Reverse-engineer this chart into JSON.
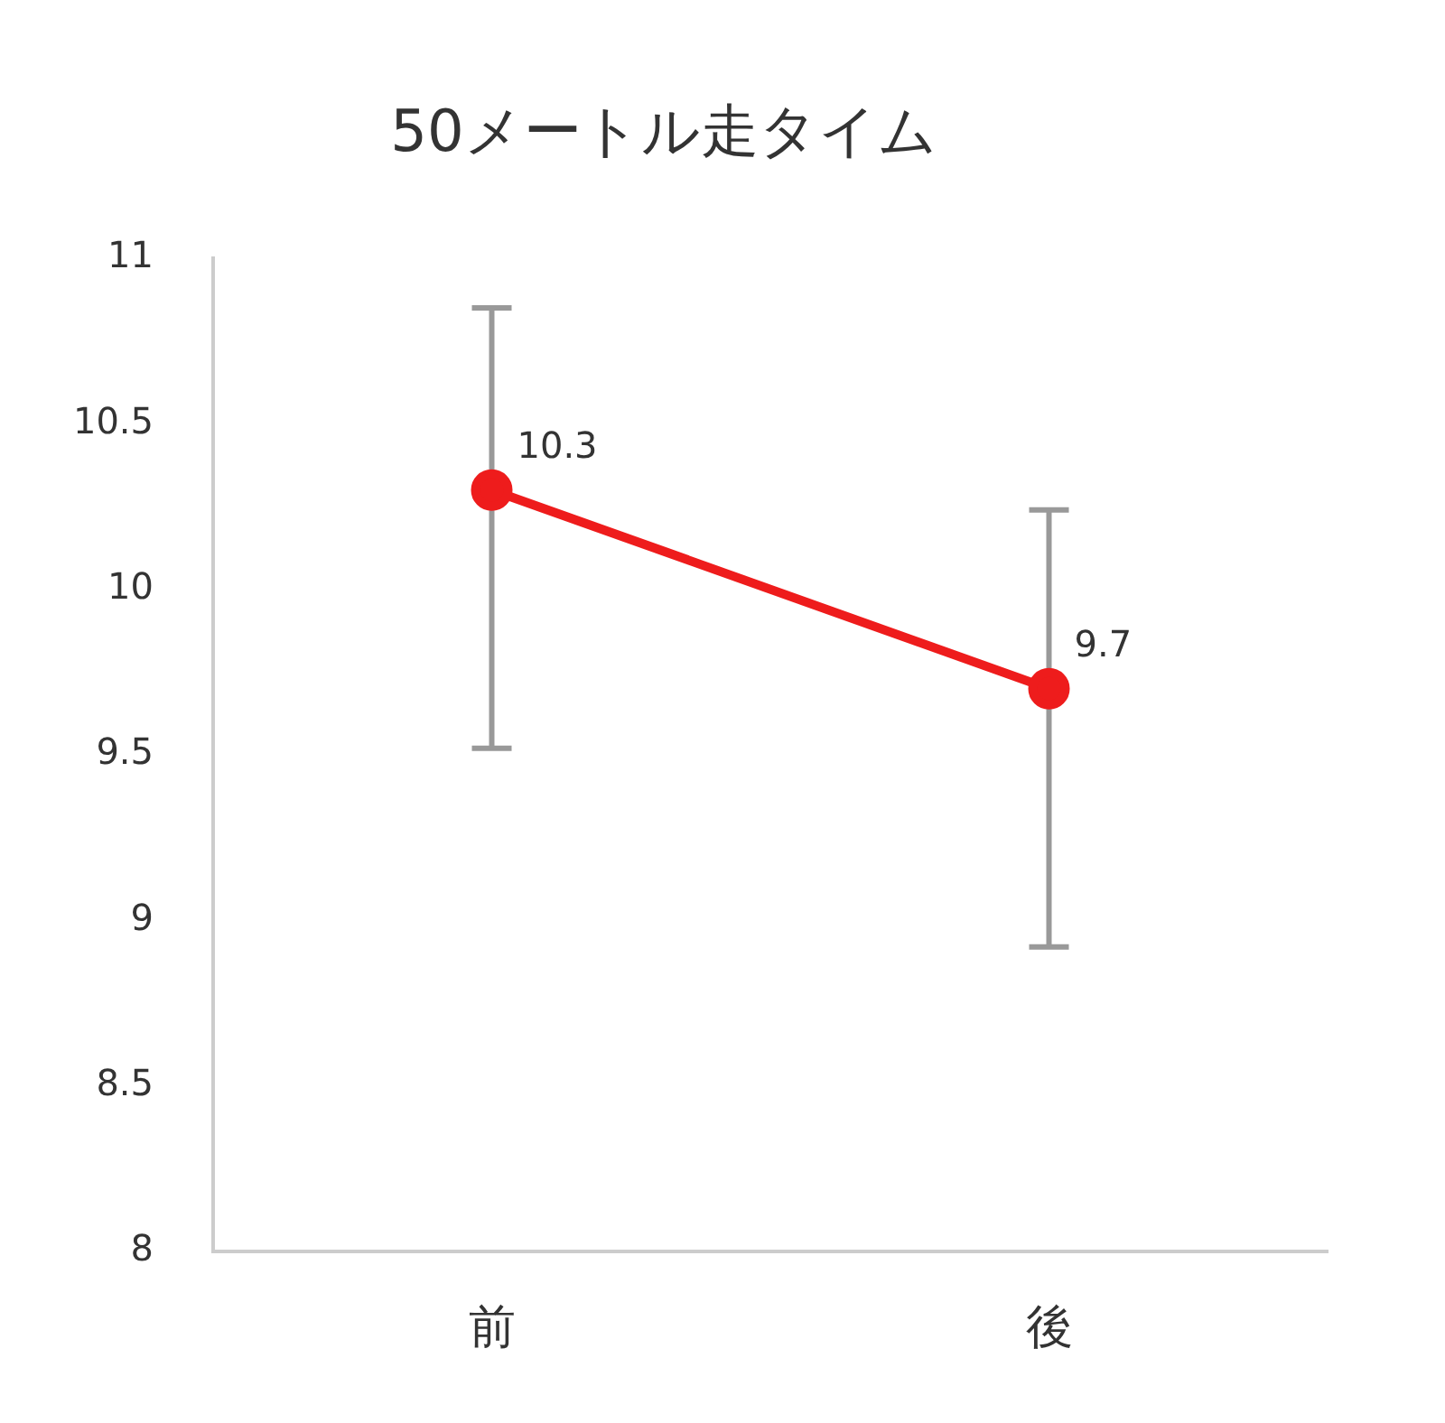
{
  "chart_data": {
    "type": "line",
    "title": "50メートル走タイム",
    "categories": [
      "前",
      "後"
    ],
    "series": [
      {
        "color": "#ee1c1c",
        "values": [
          10.3,
          9.7
        ],
        "errors": [
          [
            9.52,
            10.85
          ],
          [
            8.92,
            10.24
          ]
        ]
      }
    ],
    "ylim": [
      8,
      11
    ],
    "yticks": [
      8,
      8.5,
      9,
      9.5,
      10,
      10.5,
      11
    ],
    "grid": false,
    "legend": false,
    "marker": "circle",
    "line_style": "solid",
    "data_labels": true
  }
}
